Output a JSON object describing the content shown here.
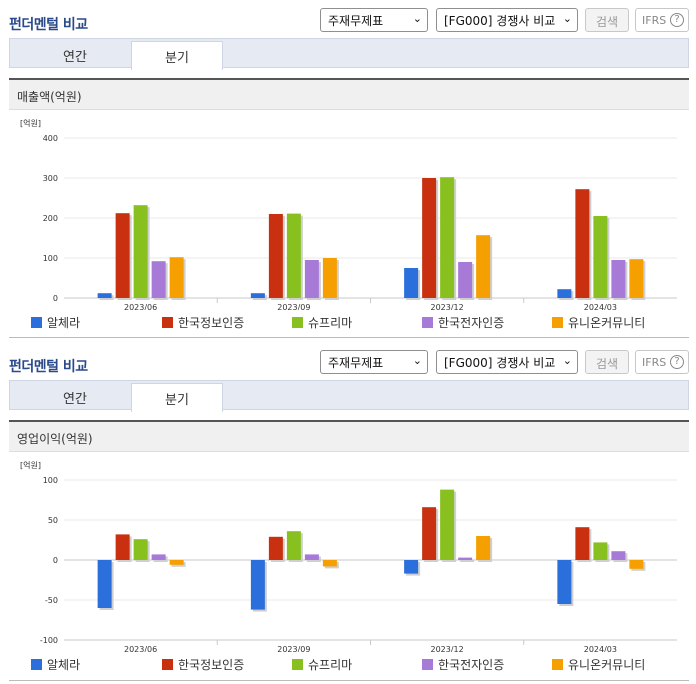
{
  "header": {
    "title": "펀더멘털 비교",
    "select1": "주재무제표",
    "select2": "[FG000] 경쟁사 비교",
    "search_label": "검색",
    "ifrs_label": "IFRS",
    "help_label": "?"
  },
  "tabs": {
    "annual": "연간",
    "quarter": "분기"
  },
  "series_colors": [
    "#2a6fdb",
    "#c8300f",
    "#88c020",
    "#a87ad8",
    "#f5a000"
  ],
  "legend": [
    "알체라",
    "한국정보인증",
    "슈프리마",
    "한국전자인증",
    "유니온커뮤니티"
  ],
  "chart_data": [
    {
      "type": "bar",
      "title": "매출액(억원)",
      "unit": "[억원]",
      "categories": [
        "2023/06",
        "2023/09",
        "2023/12",
        "2024/03"
      ],
      "ylim": [
        0,
        400
      ],
      "yticks": [
        0,
        100,
        200,
        300,
        400
      ],
      "series": [
        {
          "name": "알체라",
          "values": [
            12,
            12,
            75,
            22
          ]
        },
        {
          "name": "한국정보인증",
          "values": [
            212,
            210,
            300,
            272
          ]
        },
        {
          "name": "슈프리마",
          "values": [
            232,
            211,
            302,
            205
          ]
        },
        {
          "name": "한국전자인증",
          "values": [
            92,
            95,
            90,
            95
          ]
        },
        {
          "name": "유니온커뮤니티",
          "values": [
            102,
            100,
            157,
            97
          ]
        }
      ]
    },
    {
      "type": "bar",
      "title": "영업이익(억원)",
      "unit": "[억원]",
      "categories": [
        "2023/06",
        "2023/09",
        "2023/12",
        "2024/03"
      ],
      "ylim": [
        -100,
        100
      ],
      "yticks": [
        -100,
        -50,
        0,
        50,
        100
      ],
      "series": [
        {
          "name": "알체라",
          "values": [
            -60,
            -62,
            -17,
            -55
          ]
        },
        {
          "name": "한국정보인증",
          "values": [
            32,
            29,
            66,
            41
          ]
        },
        {
          "name": "슈프리마",
          "values": [
            26,
            36,
            88,
            22
          ]
        },
        {
          "name": "한국전자인증",
          "values": [
            7,
            7,
            3,
            11
          ]
        },
        {
          "name": "유니온커뮤니티",
          "values": [
            -6,
            -8,
            30,
            -11
          ]
        }
      ]
    }
  ]
}
